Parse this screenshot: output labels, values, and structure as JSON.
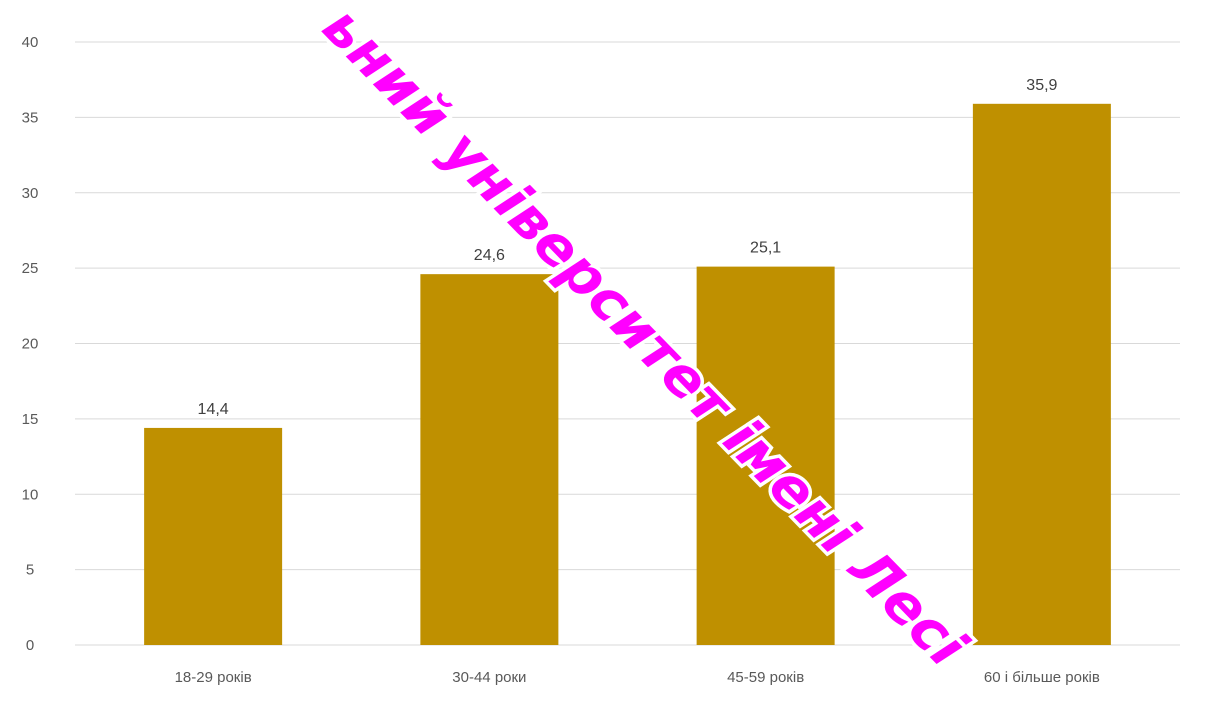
{
  "chart_data": {
    "type": "bar",
    "categories": [
      "18-29 років",
      "30-44 роки",
      "45-59 років",
      "60 і більше років"
    ],
    "values": [
      14.4,
      24.6,
      25.1,
      35.9
    ],
    "data_labels": [
      "14,4",
      "24,6",
      "25,1",
      "35,9"
    ],
    "ylim": [
      0,
      40
    ],
    "yticks": [
      0,
      5,
      10,
      15,
      20,
      25,
      30,
      35,
      40
    ],
    "grid": true,
    "legend": "none",
    "colors": {
      "bar": "#bf9000"
    }
  },
  "watermark": {
    "text": "ьний університет імені Лесі",
    "color": "#ff00ff"
  }
}
